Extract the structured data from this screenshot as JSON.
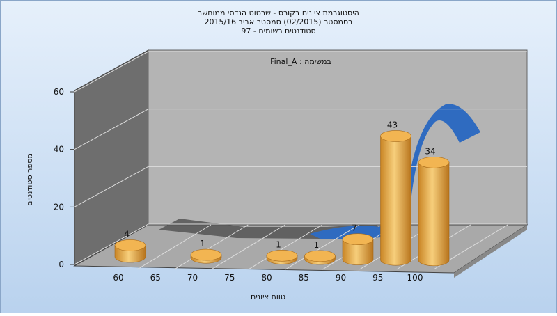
{
  "chart_data": {
    "type": "bar",
    "title": [
      "היסטוגרמת ציונים בקורס - שרטוט הנדסי ממוחשב",
      "בסמסטר (02/2015) סמסטר אביב 2015/16",
      "סטודנטים רשומים - 97"
    ],
    "annotation": "במשימה : Final_A",
    "x_label": "טווח ציונים",
    "y_label": "מספר סטודנטים",
    "x": [
      60,
      70,
      80,
      85,
      90,
      95,
      100
    ],
    "values": [
      4,
      1,
      1,
      1,
      7,
      43,
      34
    ],
    "color": "#e8a23a",
    "xticks": [
      60,
      65,
      70,
      75,
      80,
      85,
      90,
      95,
      100
    ],
    "ylim": [
      0,
      60
    ],
    "yticks": [
      0,
      20,
      40,
      60
    ],
    "grid": true
  }
}
